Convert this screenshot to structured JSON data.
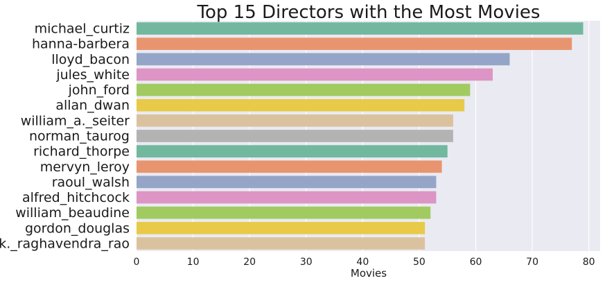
{
  "chart_data": {
    "type": "bar",
    "orientation": "horizontal",
    "title": "Top 15 Directors with the Most Movies",
    "xlabel": "Movies",
    "ylabel": "",
    "xlim": [
      0,
      82
    ],
    "xticks": [
      0,
      10,
      20,
      30,
      40,
      50,
      60,
      70,
      80
    ],
    "grid": true,
    "background": "#eaeaf2",
    "categories": [
      "michael_curtiz",
      "hanna-barbera",
      "lloyd_bacon",
      "jules_white",
      "john_ford",
      "allan_dwan",
      "william_a._seiter",
      "norman_taurog",
      "richard_thorpe",
      "mervyn_leroy",
      "raoul_walsh",
      "alfred_hitchcock",
      "william_beaudine",
      "gordon_douglas",
      "k._raghavendra_rao"
    ],
    "values": [
      79,
      77,
      66,
      63,
      59,
      58,
      56,
      56,
      55,
      54,
      53,
      53,
      52,
      51,
      51
    ],
    "colors": [
      "#72b89f",
      "#e8956f",
      "#95a5c8",
      "#dc95c4",
      "#a1cb60",
      "#e8ca48",
      "#dbc29f",
      "#b3b3b3",
      "#72b89f",
      "#e8956f",
      "#95a5c8",
      "#dc95c4",
      "#a1cb60",
      "#e8ca48",
      "#dbc29f"
    ]
  }
}
